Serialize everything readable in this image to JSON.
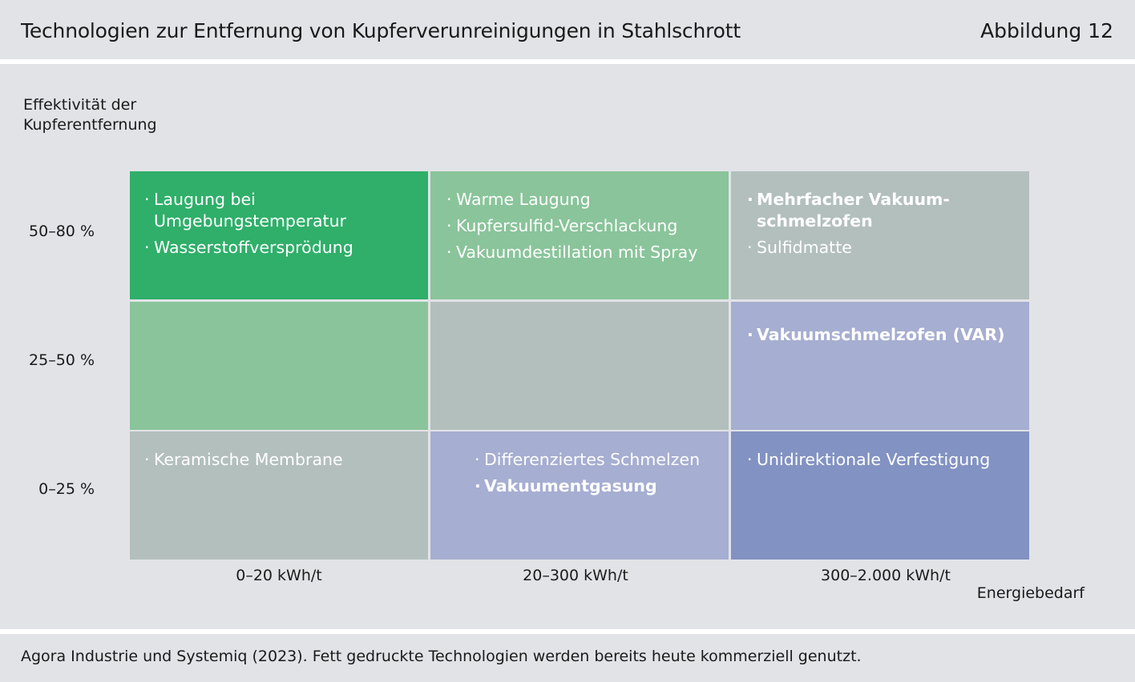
{
  "header": {
    "title": "Technologien zur Entfernung von Kupferverunreinigungen in Stahlschrott",
    "figure_number": "Abbildung 12"
  },
  "y_axis": {
    "label_line1": "Effektivität der",
    "label_line2": "Kupferentfernung",
    "ticks": [
      "50–80 %",
      "25–50 %",
      "0–25 %"
    ]
  },
  "x_axis": {
    "label": "Energiebedarf",
    "ticks": [
      "0–20 kWh/t",
      "20–300 kWh/t",
      "300–2.000 kWh/t"
    ]
  },
  "colors": {
    "dark_green": "#2faf6a",
    "light_green": "#8ac49a",
    "grey": "#b3bfbd",
    "light_blue": "#a6aed1",
    "dark_blue": "#8292c2",
    "background": "#e2e3e7"
  },
  "cells": {
    "r0c0": {
      "items": [
        {
          "text_line1": "Laugung bei",
          "text_line2": "Umgebungstemperatur",
          "bold": false
        },
        {
          "text_line1": "Wasserstoffversprödung",
          "bold": false
        }
      ]
    },
    "r0c1": {
      "items": [
        {
          "text_line1": "Warme Laugung",
          "bold": false
        },
        {
          "text_line1": "Kupfersulfid-Verschlackung",
          "bold": false
        },
        {
          "text_line1": "Vakuumdestillation mit Spray",
          "bold": false
        }
      ]
    },
    "r0c2": {
      "items": [
        {
          "text_line1": "Mehrfacher Vakuum-",
          "text_line2": "schmelzofen",
          "bold": true
        },
        {
          "text_line1": "Sulfidmatte",
          "bold": false
        }
      ]
    },
    "r1c0": {
      "items": []
    },
    "r1c1": {
      "items": []
    },
    "r1c2": {
      "items": [
        {
          "text_line1": "Vakuumschmelzofen (VAR)",
          "bold": true
        }
      ]
    },
    "r2c0": {
      "items": [
        {
          "text_line1": "Keramische Membrane",
          "bold": false
        }
      ]
    },
    "r2c1": {
      "items": [
        {
          "text_line1": "Differenziertes Schmelzen",
          "bold": false
        },
        {
          "text_line1": "Vakuumentgasung",
          "bold": true
        }
      ]
    },
    "r2c2": {
      "items": [
        {
          "text_line1": "Unidirektionale Verfestigung",
          "bold": false
        }
      ]
    }
  },
  "footer": {
    "source": "Agora Industrie und Systemiq (2023). Fett gedruckte Technologien werden bereits heute kommerziell genutzt."
  }
}
